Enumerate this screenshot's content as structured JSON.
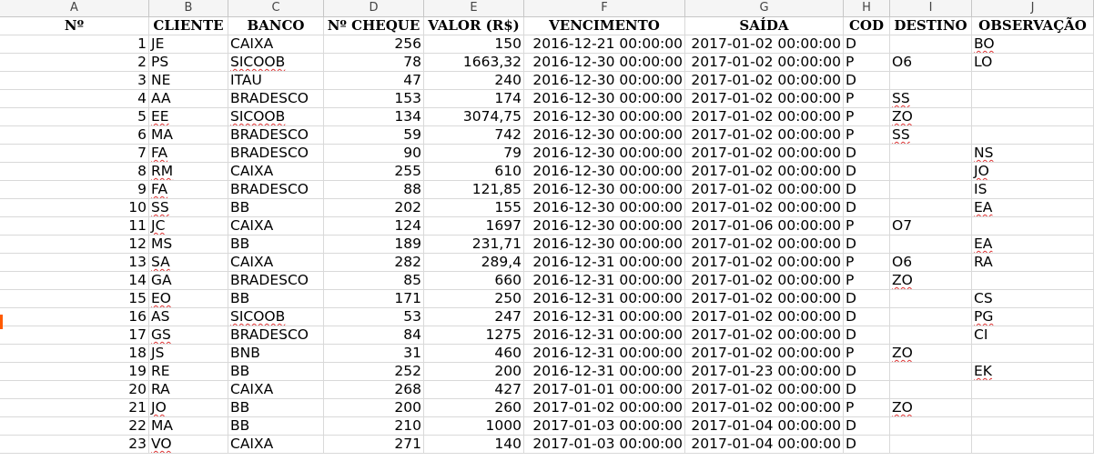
{
  "column_letters": [
    "A",
    "B",
    "C",
    "D",
    "E",
    "F",
    "G",
    "H",
    "I",
    "J"
  ],
  "headers": [
    "Nº",
    "CLIENTE",
    "BANCO",
    "Nº CHEQUE",
    "VALOR (R$)",
    "VENCIMENTO",
    "SAÍDA",
    "COD",
    "DESTINO",
    "OBSERVAÇÃO"
  ],
  "rows": [
    [
      "1",
      "JE",
      "CAIXA",
      "256",
      "150",
      "2016-12-21 00:00:00",
      "2017-01-02 00:00:00",
      "D",
      "",
      "BO"
    ],
    [
      "2",
      "PS",
      "SICOOB",
      "78",
      "1663,32",
      "2016-12-30 00:00:00",
      "2017-01-02 00:00:00",
      "P",
      "O6",
      "LO"
    ],
    [
      "3",
      "NE",
      "ITAU",
      "47",
      "240",
      "2016-12-30 00:00:00",
      "2017-01-02 00:00:00",
      "D",
      "",
      ""
    ],
    [
      "4",
      "AA",
      "BRADESCO",
      "153",
      "174",
      "2016-12-30 00:00:00",
      "2017-01-02 00:00:00",
      "P",
      "SS",
      ""
    ],
    [
      "5",
      "EE",
      "SICOOB",
      "134",
      "3074,75",
      "2016-12-30 00:00:00",
      "2017-01-02 00:00:00",
      "P",
      "ZO",
      ""
    ],
    [
      "6",
      "MA",
      "BRADESCO",
      "59",
      "742",
      "2016-12-30 00:00:00",
      "2017-01-02 00:00:00",
      "P",
      "SS",
      ""
    ],
    [
      "7",
      "FA",
      "BRADESCO",
      "90",
      "79",
      "2016-12-30 00:00:00",
      "2017-01-02 00:00:00",
      "D",
      "",
      "NS"
    ],
    [
      "8",
      "RM",
      "CAIXA",
      "255",
      "610",
      "2016-12-30 00:00:00",
      "2017-01-02 00:00:00",
      "D",
      "",
      "JO"
    ],
    [
      "9",
      "FA",
      "BRADESCO",
      "88",
      "121,85",
      "2016-12-30 00:00:00",
      "2017-01-02 00:00:00",
      "D",
      "",
      "IS"
    ],
    [
      "10",
      "SS",
      "BB",
      "202",
      "155",
      "2016-12-30 00:00:00",
      "2017-01-02 00:00:00",
      "D",
      "",
      "EA"
    ],
    [
      "11",
      "JC",
      "CAIXA",
      "124",
      "1697",
      "2016-12-30 00:00:00",
      "2017-01-06 00:00:00",
      "P",
      "O7",
      ""
    ],
    [
      "12",
      "MS",
      "BB",
      "189",
      "231,71",
      "2016-12-30 00:00:00",
      "2017-01-02 00:00:00",
      "D",
      "",
      "EA"
    ],
    [
      "13",
      "SA",
      "CAIXA",
      "282",
      "289,4",
      "2016-12-31 00:00:00",
      "2017-01-02 00:00:00",
      "P",
      "O6",
      "RA"
    ],
    [
      "14",
      "GA",
      "BRADESCO",
      "85",
      "660",
      "2016-12-31 00:00:00",
      "2017-01-02 00:00:00",
      "P",
      "ZO",
      ""
    ],
    [
      "15",
      "EO",
      "BB",
      "171",
      "250",
      "2016-12-31 00:00:00",
      "2017-01-02 00:00:00",
      "D",
      "",
      "CS"
    ],
    [
      "16",
      "AS",
      "SICOOB",
      "53",
      "247",
      "2016-12-31 00:00:00",
      "2017-01-02 00:00:00",
      "D",
      "",
      "PG"
    ],
    [
      "17",
      "GS",
      "BRADESCO",
      "84",
      "1275",
      "2016-12-31 00:00:00",
      "2017-01-02 00:00:00",
      "D",
      "",
      "CI"
    ],
    [
      "18",
      "JS",
      "BNB",
      "31",
      "460",
      "2016-12-31 00:00:00",
      "2017-01-02 00:00:00",
      "P",
      "ZO",
      ""
    ],
    [
      "19",
      "RE",
      "BB",
      "252",
      "200",
      "2016-12-31 00:00:00",
      "2017-01-23 00:00:00",
      "D",
      "",
      "EK"
    ],
    [
      "20",
      "RA",
      "CAIXA",
      "268",
      "427",
      "2017-01-01 00:00:00",
      "2017-01-02 00:00:00",
      "D",
      "",
      ""
    ],
    [
      "21",
      "JO",
      "BB",
      "200",
      "260",
      "2017-01-02 00:00:00",
      "2017-01-02 00:00:00",
      "P",
      "ZO",
      ""
    ],
    [
      "22",
      "MA",
      "BB",
      "210",
      "1000",
      "2017-01-03 00:00:00",
      "2017-01-04 00:00:00",
      "D",
      "",
      ""
    ],
    [
      "23",
      "VO",
      "CAIXA",
      "271",
      "140",
      "2017-01-03 00:00:00",
      "2017-01-04 00:00:00",
      "D",
      "",
      ""
    ]
  ],
  "spellcheck_flags": {
    "SICOOB": true,
    "EE": true,
    "FA": true,
    "RM": true,
    "JC": true,
    "SA": true,
    "EO": true,
    "GS": true,
    "JO": true,
    "VO": true,
    "ZO": true,
    "SS": true,
    "BO": true,
    "NS": true,
    "EA": true,
    "PG": true,
    "EK": true
  },
  "colors": {
    "spellcheck_underline": "#d33",
    "row_marker": "#ff5a00",
    "grid": "#d9d9d9",
    "header_bg": "#f5f5f5"
  }
}
